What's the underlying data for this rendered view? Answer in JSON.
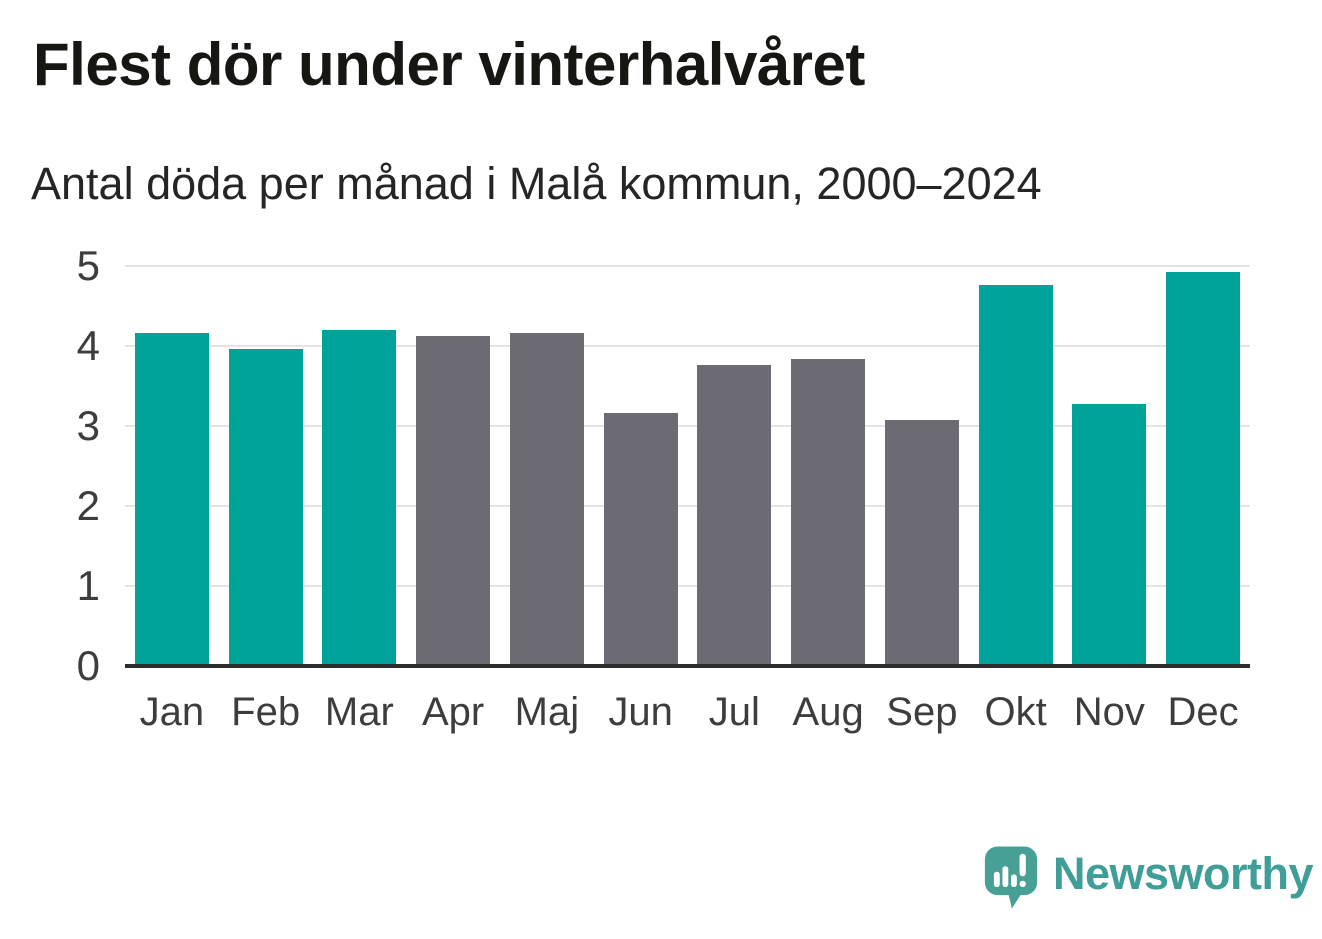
{
  "header": {
    "title": "Flest dör under vinterhalvåret",
    "subtitle": "Antal döda per månad i Malå kommun, 2000–2024"
  },
  "chart_data": {
    "type": "bar",
    "title": "Flest dör under vinterhalvåret",
    "subtitle": "Antal döda per månad i Malå kommun, 2000–2024",
    "categories": [
      "Jan",
      "Feb",
      "Mar",
      "Apr",
      "Maj",
      "Jun",
      "Jul",
      "Aug",
      "Sep",
      "Okt",
      "Nov",
      "Dec"
    ],
    "values": [
      4.16,
      3.96,
      4.2,
      4.12,
      4.16,
      3.16,
      3.76,
      3.84,
      3.08,
      4.76,
      3.28,
      4.92
    ],
    "winter_mask": [
      true,
      true,
      true,
      false,
      false,
      false,
      false,
      false,
      false,
      true,
      true,
      true
    ],
    "xlabel": "",
    "ylabel": "",
    "ylim": [
      0,
      5
    ],
    "yticks": [
      0,
      1,
      2,
      3,
      4,
      5
    ],
    "grid": "horizontal",
    "legend": "none",
    "colors": {
      "winter_bar": "#00a39a",
      "summer_bar": "#6c6b74",
      "gridline": "#e4e4e4",
      "axis_line": "#2d2d2d",
      "tick_label": "#3d3d3d"
    }
  },
  "footer": {
    "brand": "Newsworthy",
    "logo": {
      "icon": "speech-bubble-bar-chart-exclamation",
      "mark_color": "#46a096",
      "mark_shadow_color": "#35877f",
      "glyph_color": "#ffffff",
      "text_color": "#3f9e97"
    }
  }
}
